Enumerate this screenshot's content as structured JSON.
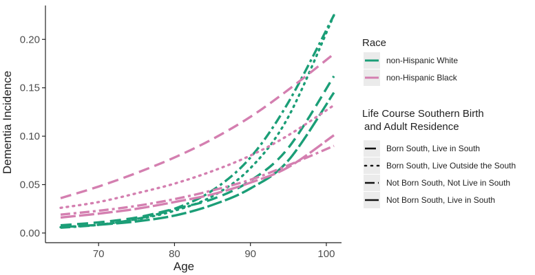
{
  "chart_data": {
    "type": "line",
    "xlabel": "Age",
    "ylabel": "Dementia Incidence",
    "xlim": [
      63,
      102
    ],
    "ylim": [
      -0.01,
      0.235
    ],
    "x_ticks": [
      70,
      80,
      90,
      100
    ],
    "y_ticks": [
      0.0,
      0.05,
      0.1,
      0.15,
      0.2
    ],
    "y_tick_labels": [
      "0.00",
      "0.05",
      "0.10",
      "0.15",
      "0.20"
    ],
    "x": [
      65,
      70,
      75,
      80,
      85,
      90,
      95,
      101
    ],
    "series": [
      {
        "name": "non-Hispanic White / Born South, Live in South",
        "race": "white",
        "linetype": "longdash",
        "values": [
          0.008,
          0.011,
          0.016,
          0.025,
          0.035,
          0.054,
          0.088,
          0.162
        ]
      },
      {
        "name": "non-Hispanic White / Born South, Live Outside the South",
        "race": "white",
        "linetype": "dotted",
        "values": [
          0.006,
          0.0085,
          0.014,
          0.023,
          0.038,
          0.067,
          0.12,
          0.225
        ]
      },
      {
        "name": "non-Hispanic White / Not Born South, Not Live in South",
        "race": "white",
        "linetype": "dashdot",
        "values": [
          0.0055,
          0.0085,
          0.0145,
          0.025,
          0.044,
          0.078,
          0.135,
          0.225
        ]
      },
      {
        "name": "non-Hispanic White / Not Born South, Live in South",
        "race": "white",
        "linetype": "solid-dash",
        "values": [
          0.006,
          0.0085,
          0.012,
          0.018,
          0.029,
          0.046,
          0.075,
          0.145
        ]
      },
      {
        "name": "non-Hispanic Black / Born South, Live in South",
        "race": "black",
        "linetype": "longdash",
        "values": [
          0.036,
          0.048,
          0.062,
          0.078,
          0.097,
          0.12,
          0.148,
          0.185
        ]
      },
      {
        "name": "non-Hispanic Black / Born South, Live Outside the South",
        "race": "black",
        "linetype": "dotted",
        "values": [
          0.026,
          0.032,
          0.041,
          0.051,
          0.064,
          0.08,
          0.101,
          0.132
        ]
      },
      {
        "name": "non-Hispanic Black / Not Born South, Not Live in South",
        "race": "black",
        "linetype": "dashdot",
        "values": [
          0.019,
          0.023,
          0.028,
          0.035,
          0.044,
          0.055,
          0.07,
          0.09
        ]
      },
      {
        "name": "non-Hispanic Black / Not Born South, Live in South",
        "race": "black",
        "linetype": "solid-dash",
        "values": [
          0.016,
          0.02,
          0.025,
          0.032,
          0.04,
          0.052,
          0.068,
          0.101
        ]
      }
    ],
    "legend": {
      "position": "right",
      "race_title": "Race",
      "race_entries": [
        {
          "label": "non-Hispanic White",
          "race": "white"
        },
        {
          "label": "non-Hispanic Black",
          "race": "black"
        }
      ],
      "life_course_title": [
        "Life Course Southern Birth",
        "and Adult Residence"
      ],
      "life_course_entries": [
        {
          "label": "Born South, Live in South",
          "linetype": "longdash"
        },
        {
          "label": "Born South, Live Outside the South",
          "linetype": "dotted"
        },
        {
          "label": "Not Born South, Not Live in South",
          "linetype": "dashdot"
        },
        {
          "label": "Not Born South, Live in South",
          "linetype": "solid-dash"
        }
      ]
    },
    "colors": {
      "white": "#1b9e77",
      "black": "#d47fb0",
      "legend_bg": "#ebebeb",
      "axis": "#222222"
    }
  }
}
